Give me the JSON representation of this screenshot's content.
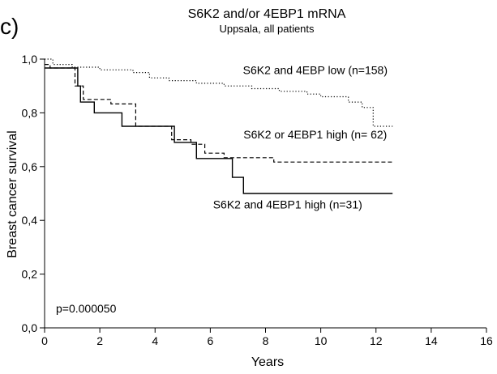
{
  "chart_data": {
    "type": "line",
    "panel_label": "c)",
    "title": "S6K2 and/or 4EBP1 mRNA",
    "subtitle": "Uppsala, all patients",
    "xlabel": "Years",
    "ylabel": "Breast cancer survival",
    "xlim": [
      0,
      16
    ],
    "ylim": [
      0,
      1.0
    ],
    "x_ticks": [
      0,
      2,
      4,
      6,
      8,
      10,
      12,
      14,
      16
    ],
    "x_tick_labels": [
      "0",
      "2",
      "4",
      "6",
      "8",
      "10",
      "12",
      "14",
      "16"
    ],
    "y_ticks": [
      0,
      0.2,
      0.4,
      0.6,
      0.8,
      1.0
    ],
    "y_tick_labels": [
      "0,0",
      "0,2",
      "0,4",
      "0,6",
      "0,8",
      "1,0"
    ],
    "grid": false,
    "step": true,
    "pvalue_text": "p=0.000050",
    "series": [
      {
        "name": "S6K2 and 4EBP low (n=158)",
        "style": "dotted",
        "x": [
          0,
          0.3,
          1.0,
          2.0,
          3.2,
          3.8,
          4.5,
          5.5,
          6.5,
          7.5,
          8.5,
          9.5,
          10.0,
          11.0,
          11.5,
          11.9,
          12.2,
          12.6
        ],
        "y": [
          1.0,
          0.98,
          0.97,
          0.96,
          0.95,
          0.93,
          0.92,
          0.91,
          0.9,
          0.89,
          0.88,
          0.87,
          0.86,
          0.84,
          0.82,
          0.75,
          0.75,
          0.75
        ]
      },
      {
        "name": "S6K2 or 4EBP1 high (n= 62)",
        "style": "dashed",
        "x": [
          0,
          0.2,
          1.1,
          1.4,
          2.4,
          3.3,
          4.6,
          5.3,
          5.8,
          6.5,
          8.3,
          12.6
        ],
        "y": [
          0.98,
          0.967,
          0.9,
          0.85,
          0.833,
          0.75,
          0.7,
          0.683,
          0.65,
          0.633,
          0.617,
          0.617
        ]
      },
      {
        "name": "S6K2 and 4EBP1 high (n=31)",
        "style": "solid",
        "x": [
          0,
          1.2,
          1.3,
          1.8,
          2.8,
          4.7,
          5.5,
          6.8,
          7.2,
          12.6
        ],
        "y": [
          0.967,
          0.9,
          0.84,
          0.8,
          0.75,
          0.69,
          0.63,
          0.56,
          0.5,
          0.5
        ]
      }
    ]
  }
}
